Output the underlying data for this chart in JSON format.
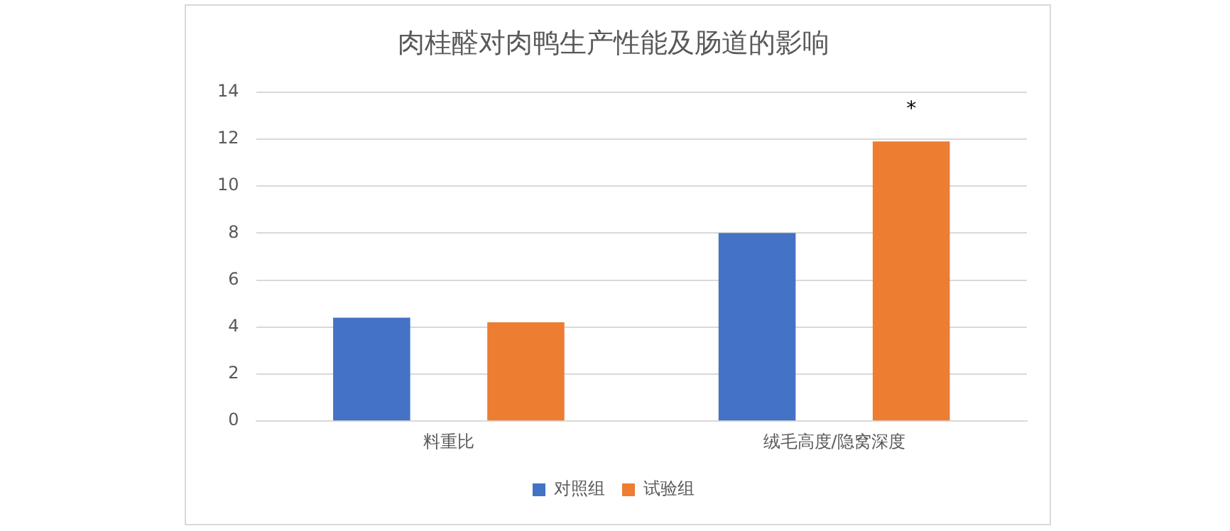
{
  "chart_data": {
    "type": "bar",
    "title": "肉桂醛对肉鸭生产性能及肠道的影响",
    "categories": [
      "料重比",
      "绒毛高度/隐窝深度"
    ],
    "series": [
      {
        "name": "对照组",
        "color": "#4472c4",
        "values": [
          4.4,
          8.0
        ]
      },
      {
        "name": "试验组",
        "color": "#ed7d31",
        "values": [
          4.2,
          11.9
        ]
      }
    ],
    "ylim": [
      0,
      14
    ],
    "yticks": [
      0,
      2,
      4,
      6,
      8,
      10,
      12,
      14
    ],
    "grid": "y",
    "legend": "bottom",
    "annotations": [
      "*"
    ]
  }
}
